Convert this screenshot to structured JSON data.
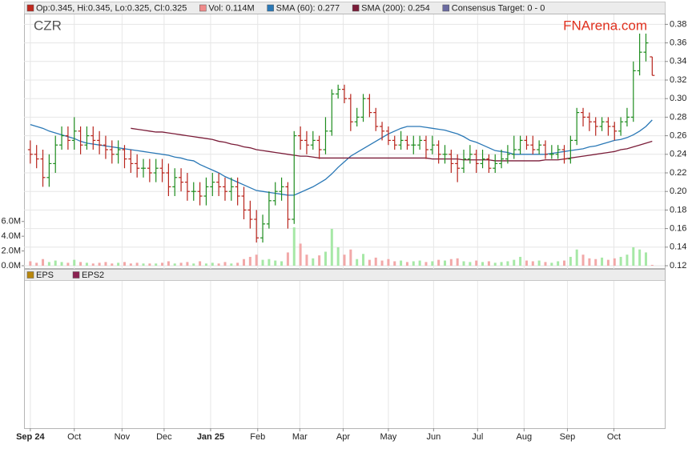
{
  "chart_data": [
    {
      "type": "ohlc",
      "title": "CZR",
      "watermark": "FNArena.com",
      "legend": [
        {
          "label": "Op:0.345, Hi:0.345, Lo:0.325, Cl:0.325",
          "color": "#c0281e"
        },
        {
          "label": "Vol: 0.114M",
          "color": "#f08a8a"
        },
        {
          "label": "SMA (60): 0.277",
          "color": "#2a78b6"
        },
        {
          "label": "SMA (200): 0.254",
          "color": "#7a1c38"
        },
        {
          "label": "Consensus Target: 0 - 0",
          "color": "#6a6aa0"
        }
      ],
      "grid": true,
      "xlim": [
        -1,
        101
      ],
      "xticks": [
        {
          "value": 0,
          "label": "Sep 24"
        },
        {
          "value": 7.0,
          "label": "Oct"
        },
        {
          "value": 14.6,
          "label": "Nov"
        },
        {
          "value": 21.3,
          "label": "Dec"
        },
        {
          "value": 28.7,
          "label": "Jan 25"
        },
        {
          "value": 36.2,
          "label": "Feb"
        },
        {
          "value": 42.9,
          "label": "Mar"
        },
        {
          "value": 49.8,
          "label": "Apr"
        },
        {
          "value": 57.0,
          "label": "May"
        },
        {
          "value": 64.2,
          "label": "Jun"
        },
        {
          "value": 71.2,
          "label": "Jul"
        },
        {
          "value": 78.6,
          "label": "Aug"
        },
        {
          "value": 85.5,
          "label": "Sep"
        },
        {
          "value": 92.9,
          "label": "Oct"
        }
      ],
      "ylim": [
        0.12,
        0.39
      ],
      "yticks": [
        0.12,
        0.14,
        0.16,
        0.18,
        {
          "value": 0.2,
          "label": "0.20"
        },
        0.22,
        0.24,
        0.26,
        0.28,
        {
          "value": 0.3,
          "label": "0.30"
        },
        0.32,
        0.34,
        0.36,
        0.38
      ],
      "y2lim": [
        0,
        34000000
      ],
      "y2ticks": [
        {
          "value": 0,
          "label": "0.0M"
        },
        {
          "value": 2000000,
          "label": "2.0M"
        },
        {
          "value": 4000000,
          "label": "4.0M"
        },
        {
          "value": 6000000,
          "label": "6.0M"
        }
      ],
      "up_color": "#1e8c1e",
      "down_color": "#b8241c",
      "volume_up_color": "#a6e8a6",
      "volume_down_color": "#f2a8a8",
      "open": [
        0.245,
        0.24,
        0.235,
        0.215,
        0.23,
        0.25,
        0.26,
        0.255,
        0.265,
        0.25,
        0.26,
        0.255,
        0.25,
        0.245,
        0.24,
        0.245,
        0.235,
        0.23,
        0.225,
        0.225,
        0.22,
        0.225,
        0.22,
        0.205,
        0.215,
        0.21,
        0.2,
        0.2,
        0.195,
        0.205,
        0.21,
        0.205,
        0.2,
        0.205,
        0.195,
        0.18,
        0.17,
        0.15,
        0.165,
        0.19,
        0.2,
        0.205,
        0.17,
        0.26,
        0.255,
        0.25,
        0.255,
        0.245,
        0.265,
        0.305,
        0.31,
        0.3,
        0.275,
        0.28,
        0.3,
        0.285,
        0.27,
        0.265,
        0.255,
        0.25,
        0.255,
        0.25,
        0.25,
        0.255,
        0.245,
        0.25,
        0.24,
        0.24,
        0.23,
        0.225,
        0.235,
        0.24,
        0.23,
        0.235,
        0.225,
        0.23,
        0.235,
        0.24,
        0.245,
        0.255,
        0.25,
        0.245,
        0.25,
        0.24,
        0.24,
        0.245,
        0.235,
        0.255,
        0.285,
        0.28,
        0.275,
        0.27,
        0.275,
        0.27,
        0.265,
        0.275,
        0.28,
        0.33,
        0.35,
        0.345
      ],
      "high": [
        0.255,
        0.25,
        0.245,
        0.24,
        0.26,
        0.27,
        0.27,
        0.28,
        0.27,
        0.27,
        0.27,
        0.265,
        0.26,
        0.255,
        0.255,
        0.25,
        0.245,
        0.24,
        0.235,
        0.235,
        0.235,
        0.235,
        0.23,
        0.225,
        0.225,
        0.22,
        0.21,
        0.21,
        0.215,
        0.22,
        0.22,
        0.215,
        0.215,
        0.215,
        0.205,
        0.19,
        0.18,
        0.175,
        0.2,
        0.21,
        0.215,
        0.21,
        0.265,
        0.27,
        0.265,
        0.265,
        0.26,
        0.28,
        0.31,
        0.315,
        0.315,
        0.305,
        0.29,
        0.305,
        0.305,
        0.29,
        0.275,
        0.27,
        0.26,
        0.265,
        0.26,
        0.26,
        0.26,
        0.26,
        0.26,
        0.255,
        0.25,
        0.245,
        0.24,
        0.245,
        0.25,
        0.245,
        0.245,
        0.24,
        0.24,
        0.245,
        0.25,
        0.26,
        0.26,
        0.26,
        0.26,
        0.255,
        0.255,
        0.25,
        0.25,
        0.25,
        0.26,
        0.29,
        0.29,
        0.285,
        0.28,
        0.28,
        0.28,
        0.275,
        0.28,
        0.29,
        0.34,
        0.37,
        0.37,
        0.345
      ],
      "low": [
        0.23,
        0.225,
        0.205,
        0.205,
        0.22,
        0.245,
        0.245,
        0.245,
        0.24,
        0.245,
        0.245,
        0.24,
        0.235,
        0.23,
        0.23,
        0.225,
        0.22,
        0.215,
        0.215,
        0.21,
        0.21,
        0.21,
        0.195,
        0.195,
        0.2,
        0.19,
        0.19,
        0.185,
        0.185,
        0.195,
        0.195,
        0.19,
        0.19,
        0.185,
        0.17,
        0.16,
        0.145,
        0.145,
        0.16,
        0.185,
        0.19,
        0.16,
        0.165,
        0.245,
        0.24,
        0.245,
        0.235,
        0.24,
        0.26,
        0.3,
        0.295,
        0.265,
        0.27,
        0.275,
        0.28,
        0.265,
        0.255,
        0.25,
        0.245,
        0.245,
        0.245,
        0.24,
        0.245,
        0.235,
        0.24,
        0.23,
        0.23,
        0.22,
        0.21,
        0.22,
        0.23,
        0.22,
        0.225,
        0.22,
        0.22,
        0.225,
        0.23,
        0.235,
        0.24,
        0.245,
        0.24,
        0.24,
        0.235,
        0.235,
        0.235,
        0.23,
        0.23,
        0.25,
        0.27,
        0.265,
        0.26,
        0.265,
        0.26,
        0.255,
        0.26,
        0.27,
        0.275,
        0.325,
        0.34,
        0.325
      ],
      "close": [
        0.24,
        0.235,
        0.215,
        0.23,
        0.25,
        0.26,
        0.255,
        0.265,
        0.25,
        0.26,
        0.255,
        0.25,
        0.245,
        0.24,
        0.245,
        0.235,
        0.23,
        0.225,
        0.225,
        0.22,
        0.225,
        0.22,
        0.205,
        0.215,
        0.21,
        0.2,
        0.2,
        0.195,
        0.205,
        0.21,
        0.205,
        0.2,
        0.205,
        0.195,
        0.18,
        0.17,
        0.15,
        0.165,
        0.19,
        0.2,
        0.205,
        0.17,
        0.26,
        0.255,
        0.25,
        0.255,
        0.245,
        0.265,
        0.305,
        0.31,
        0.3,
        0.275,
        0.28,
        0.3,
        0.285,
        0.27,
        0.265,
        0.255,
        0.25,
        0.255,
        0.25,
        0.25,
        0.255,
        0.245,
        0.25,
        0.24,
        0.24,
        0.23,
        0.225,
        0.235,
        0.24,
        0.23,
        0.235,
        0.225,
        0.23,
        0.235,
        0.24,
        0.245,
        0.255,
        0.25,
        0.245,
        0.25,
        0.24,
        0.24,
        0.245,
        0.235,
        0.255,
        0.285,
        0.28,
        0.275,
        0.27,
        0.275,
        0.27,
        0.265,
        0.275,
        0.28,
        0.33,
        0.35,
        0.36,
        0.325
      ],
      "volume": [
        600000,
        400000,
        900000,
        500000,
        700000,
        500000,
        400000,
        800000,
        500000,
        400000,
        300000,
        400000,
        500000,
        300000,
        400000,
        500000,
        300000,
        400000,
        300000,
        300000,
        300000,
        400000,
        600000,
        300000,
        400000,
        500000,
        300000,
        600000,
        300000,
        400000,
        300000,
        500000,
        300000,
        400000,
        900000,
        1200000,
        1500000,
        800000,
        900000,
        700000,
        600000,
        1800000,
        5200000,
        3000000,
        1500000,
        1000000,
        1400000,
        1900000,
        5000000,
        2500000,
        1500000,
        2200000,
        900000,
        1600000,
        800000,
        1100000,
        700000,
        900000,
        600000,
        700000,
        500000,
        600000,
        700000,
        500000,
        600000,
        800000,
        700000,
        900000,
        1000000,
        600000,
        500000,
        700000,
        500000,
        600000,
        400000,
        500000,
        600000,
        800000,
        1200000,
        700000,
        600000,
        700000,
        500000,
        400000,
        600000,
        700000,
        1200000,
        2200000,
        1500000,
        1000000,
        900000,
        1100000,
        800000,
        1000000,
        1200000,
        1500000,
        2500000,
        2200000,
        1800000,
        114000
      ],
      "sma60": {
        "color": "#2a78b6",
        "values": [
          0.272,
          0.27,
          0.268,
          0.265,
          0.263,
          0.261,
          0.259,
          0.257,
          0.254,
          0.252,
          0.251,
          0.25,
          0.249,
          0.248,
          0.247,
          0.246,
          0.245,
          0.244,
          0.243,
          0.242,
          0.241,
          0.24,
          0.239,
          0.237,
          0.236,
          0.234,
          0.233,
          0.229,
          0.226,
          0.223,
          0.22,
          0.216,
          0.213,
          0.21,
          0.207,
          0.204,
          0.201,
          0.2,
          0.199,
          0.198,
          0.197,
          0.196,
          0.196,
          0.199,
          0.202,
          0.205,
          0.209,
          0.213,
          0.219,
          0.226,
          0.232,
          0.238,
          0.242,
          0.246,
          0.25,
          0.254,
          0.258,
          0.262,
          0.265,
          0.268,
          0.27,
          0.27,
          0.27,
          0.269,
          0.268,
          0.267,
          0.266,
          0.264,
          0.262,
          0.259,
          0.255,
          0.253,
          0.25,
          0.247,
          0.244,
          0.243,
          0.242,
          0.24,
          0.24,
          0.24,
          0.24,
          0.24,
          0.24,
          0.241,
          0.242,
          0.243,
          0.244,
          0.245,
          0.246,
          0.248,
          0.249,
          0.251,
          0.253,
          0.255,
          0.256,
          0.258,
          0.261,
          0.265,
          0.27,
          0.277
        ]
      },
      "sma200": {
        "color": "#7a1c38",
        "values": [
          null,
          null,
          null,
          null,
          null,
          null,
          null,
          null,
          null,
          null,
          null,
          null,
          null,
          null,
          null,
          null,
          0.268,
          0.267,
          0.266,
          0.265,
          0.264,
          0.264,
          0.263,
          0.262,
          0.261,
          0.26,
          0.259,
          0.258,
          0.257,
          0.256,
          0.254,
          0.253,
          0.251,
          0.25,
          0.248,
          0.247,
          0.245,
          0.244,
          0.243,
          0.242,
          0.241,
          0.24,
          0.239,
          0.238,
          0.238,
          0.237,
          0.236,
          0.236,
          0.236,
          0.236,
          0.236,
          0.236,
          0.236,
          0.236,
          0.236,
          0.236,
          0.236,
          0.236,
          0.236,
          0.236,
          0.236,
          0.236,
          0.236,
          0.236,
          0.235,
          0.235,
          0.235,
          0.235,
          0.235,
          0.234,
          0.234,
          0.234,
          0.234,
          0.234,
          0.233,
          0.233,
          0.233,
          0.233,
          0.233,
          0.233,
          0.233,
          0.233,
          0.234,
          0.234,
          0.234,
          0.235,
          0.236,
          0.237,
          0.238,
          0.239,
          0.24,
          0.241,
          0.242,
          0.243,
          0.245,
          0.246,
          0.248,
          0.25,
          0.252,
          0.254
        ]
      }
    },
    {
      "type": "line",
      "series": [
        {
          "name": "EPS",
          "color": "#b8860b"
        },
        {
          "name": "EPS2",
          "color": "#8b2252"
        }
      ]
    }
  ]
}
